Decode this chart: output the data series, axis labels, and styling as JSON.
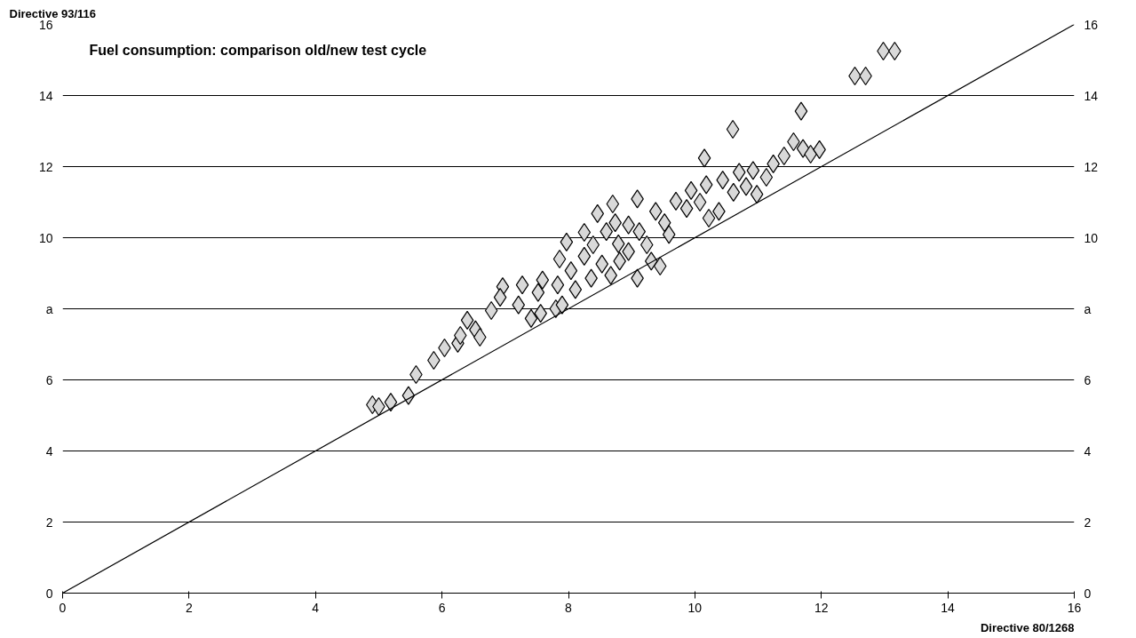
{
  "chart_data": {
    "type": "scatter",
    "title": "Fuel consumption: comparison old/new test cycle",
    "xlabel": "Directive 80/1268",
    "ylabel": "Directive 93/116",
    "xlim": [
      0,
      16
    ],
    "ylim": [
      0,
      16
    ],
    "y2lim": [
      0,
      16
    ],
    "xticks": [
      0,
      2,
      4,
      6,
      8,
      10,
      12,
      14,
      16
    ],
    "yticks": [
      0,
      2,
      4,
      6,
      {
        "value": 8,
        "label": "a"
      },
      10,
      12,
      14,
      16
    ],
    "y2ticks": [
      0,
      2,
      4,
      6,
      {
        "value": 8,
        "label": "a"
      },
      10,
      12,
      14,
      16
    ],
    "grid": "y",
    "series": [
      {
        "marker": "diamond",
        "color": "#d9d9d9",
        "x": [
          4.9,
          5.0,
          5.19,
          5.47,
          5.59,
          5.87,
          6.04,
          6.25,
          6.4,
          6.29,
          6.53,
          6.6,
          6.78,
          6.96,
          7.27,
          6.92,
          7.21,
          7.41,
          7.56,
          7.8,
          7.9,
          7.52,
          7.83,
          7.59,
          7.86,
          8.04,
          8.25,
          8.39,
          8.53,
          8.67,
          8.81,
          8.79,
          8.95,
          8.6,
          8.74,
          8.95,
          9.12,
          9.24,
          9.31,
          9.45,
          8.46,
          8.7,
          9.09,
          9.38,
          9.52,
          9.59,
          9.7,
          9.87,
          9.94,
          10.08,
          10.22,
          10.38,
          10.18,
          10.44,
          10.61,
          10.7,
          10.92,
          10.81,
          10.98,
          11.13,
          11.24,
          11.41,
          11.56,
          11.71,
          11.83,
          11.68,
          10.6,
          10.15,
          11.97,
          12.53,
          12.7,
          12.98,
          13.16,
          8.25,
          7.97,
          8.36,
          9.09,
          8.11
        ],
        "values": [
          5.3,
          5.25,
          5.37,
          5.56,
          6.15,
          6.55,
          6.9,
          7.03,
          7.68,
          7.25,
          7.41,
          7.2,
          7.95,
          8.62,
          8.67,
          8.32,
          8.11,
          7.73,
          7.87,
          8.0,
          8.11,
          8.46,
          8.67,
          8.81,
          9.4,
          9.07,
          9.48,
          9.8,
          9.26,
          8.94,
          9.34,
          9.83,
          9.61,
          10.17,
          10.42,
          10.36,
          10.17,
          9.8,
          9.34,
          9.2,
          10.68,
          10.95,
          11.09,
          10.74,
          10.42,
          10.09,
          11.03,
          10.82,
          11.33,
          11.0,
          10.55,
          10.74,
          11.49,
          11.62,
          11.28,
          11.84,
          11.89,
          11.44,
          11.22,
          11.7,
          12.08,
          12.3,
          12.7,
          12.51,
          12.35,
          13.56,
          13.05,
          12.24,
          12.48,
          14.55,
          14.55,
          15.25,
          15.25,
          10.15,
          9.88,
          8.86,
          8.86,
          8.54
        ]
      },
      {
        "type": "line",
        "color": "#000000",
        "x": [
          0,
          16
        ],
        "values": [
          0,
          16
        ]
      }
    ]
  }
}
